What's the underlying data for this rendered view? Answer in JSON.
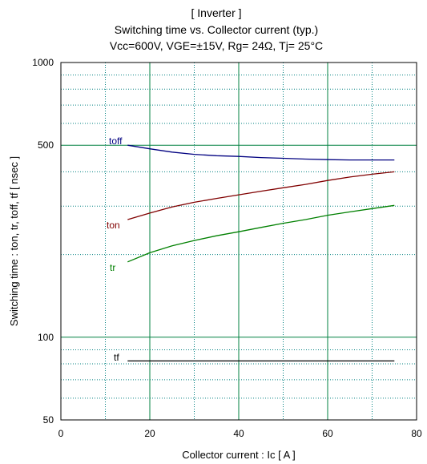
{
  "chart_data": {
    "type": "line",
    "title_lines": [
      "[ Inverter ]",
      "Switching time  vs.  Collector current  (typ.)",
      "Vcc=600V, VGE=±15V, Rg= 24Ω, Tj= 25°C"
    ],
    "xlabel": "Collector current  :  Ic  [ A ]",
    "ylabel": "Switching time  :  ton, tr, toff, tf  [ nsec ]",
    "xlim": [
      0,
      80
    ],
    "ylim": [
      50,
      1000
    ],
    "yscale": "log",
    "grid": true,
    "x_ticks": [
      0,
      20,
      40,
      60,
      80
    ],
    "x_tick_labels": [
      "0",
      "20",
      "40",
      "60",
      "80"
    ],
    "x_minor_gridlines": [
      10,
      30,
      50,
      70
    ],
    "y_tick_labels": [
      {
        "value": 1000,
        "label": "1000"
      },
      {
        "value": 500,
        "label": "500"
      },
      {
        "value": 100,
        "label": "100"
      },
      {
        "value": 50,
        "label": "50"
      }
    ],
    "y_major_gridlines": [
      500,
      100
    ],
    "y_minor_gridlines": [
      60,
      70,
      80,
      90,
      200,
      300,
      400,
      600,
      700,
      800,
      900
    ],
    "colors": {
      "major_grid": "#008040",
      "minor_grid": "#008080",
      "frame": "#000000"
    },
    "series": [
      {
        "name": "toff",
        "color": "#000080",
        "x": [
          15,
          20,
          25,
          30,
          35,
          40,
          45,
          50,
          55,
          60,
          65,
          70,
          75
        ],
        "y": [
          500,
          485,
          472,
          463,
          458,
          455,
          451,
          448,
          445,
          443,
          442,
          442,
          442
        ]
      },
      {
        "name": "ton",
        "color": "#800000",
        "x": [
          15,
          20,
          25,
          30,
          35,
          40,
          45,
          50,
          55,
          60,
          65,
          70,
          75
        ],
        "y": [
          268,
          283,
          298,
          310,
          320,
          330,
          340,
          350,
          360,
          372,
          383,
          392,
          400
        ]
      },
      {
        "name": "tr",
        "color": "#008000",
        "x": [
          15,
          20,
          25,
          30,
          35,
          40,
          45,
          50,
          55,
          60,
          65,
          70,
          75
        ],
        "y": [
          188,
          203,
          215,
          225,
          234,
          242,
          251,
          260,
          268,
          278,
          286,
          294,
          302
        ]
      },
      {
        "name": "tf",
        "color": "#000000",
        "x": [
          15,
          75
        ],
        "y": [
          82,
          82
        ]
      }
    ]
  }
}
